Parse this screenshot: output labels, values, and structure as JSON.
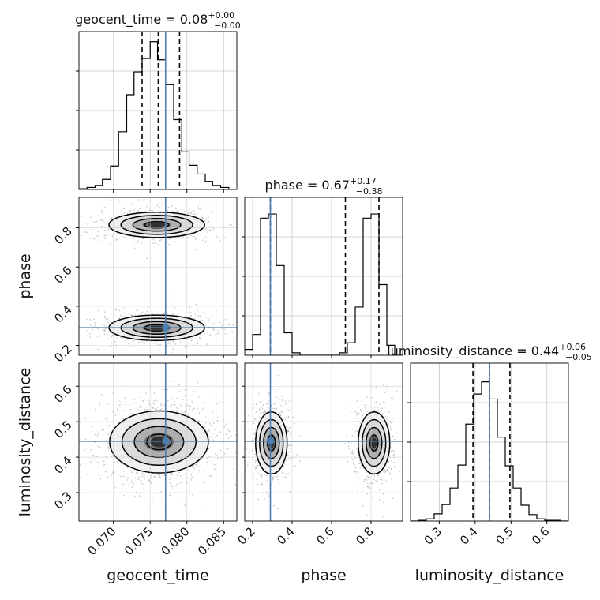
{
  "chart_data": {
    "type": "corner",
    "parameters": [
      "geocent_time",
      "phase",
      "luminosity_distance"
    ],
    "diagonal": [
      {
        "parameter": "geocent_time",
        "title_name": "geocent_time",
        "title_value": "0.08",
        "title_plus": "+0.00",
        "title_minus": "−0.00",
        "xlim": [
          0.0653,
          0.0868
        ],
        "xticks": [
          0.07,
          0.075,
          0.08,
          0.085
        ],
        "xtick_labels": [
          "0.070",
          "0.075",
          "0.080",
          "0.085"
        ],
        "bin_edges": [
          0.0653,
          0.0664,
          0.0675,
          0.0685,
          0.0696,
          0.0707,
          0.0718,
          0.0728,
          0.0739,
          0.075,
          0.076,
          0.0771,
          0.0782,
          0.0793,
          0.0803,
          0.0814,
          0.0825,
          0.0835,
          0.0846,
          0.0857,
          0.0868
        ],
        "counts": [
          1,
          3,
          6,
          15,
          35,
          86,
          141,
          175,
          195,
          220,
          193,
          156,
          104,
          56,
          36,
          23,
          12,
          6,
          3,
          0
        ],
        "ymax": 235,
        "quantiles": [
          0.0739,
          0.0761,
          0.079
        ],
        "truth": 0.0771
      },
      {
        "parameter": "phase",
        "title_name": "phase",
        "title_value": "0.67",
        "title_plus": "+0.17",
        "title_minus": "−0.38",
        "xlim": [
          0.16,
          0.96
        ],
        "xticks": [
          0.2,
          0.4,
          0.6,
          0.8
        ],
        "xtick_labels": [
          "0.2",
          "0.4",
          "0.6",
          "0.8"
        ],
        "bin_edges": [
          0.16,
          0.2,
          0.24,
          0.28,
          0.32,
          0.36,
          0.4,
          0.44,
          0.48,
          0.52,
          0.56,
          0.6,
          0.64,
          0.68,
          0.72,
          0.76,
          0.8,
          0.84,
          0.88,
          0.92,
          0.96
        ],
        "counts": [
          7,
          25,
          165,
          170,
          108,
          27,
          3,
          0,
          0,
          0,
          0,
          0,
          3,
          15,
          58,
          165,
          170,
          85,
          12,
          0
        ],
        "ymax": 190,
        "quantiles": [
          0.29,
          0.67,
          0.84
        ],
        "truth": 0.29
      },
      {
        "parameter": "luminosity_distance",
        "title_name": "luminosity_distance",
        "title_value": "0.44",
        "title_plus": "+0.06",
        "title_minus": "−0.05",
        "xlim": [
          0.22,
          0.66
        ],
        "xticks": [
          0.3,
          0.4,
          0.5,
          0.6
        ],
        "xtick_labels": [
          "0.3",
          "0.4",
          "0.5",
          "0.6"
        ],
        "bin_edges": [
          0.22,
          0.242,
          0.264,
          0.286,
          0.308,
          0.33,
          0.352,
          0.374,
          0.396,
          0.418,
          0.44,
          0.462,
          0.484,
          0.506,
          0.528,
          0.55,
          0.572,
          0.594,
          0.616,
          0.638,
          0.66
        ],
        "counts": [
          0,
          1,
          3,
          10,
          23,
          46,
          78,
          135,
          177,
          194,
          170,
          117,
          77,
          46,
          22,
          9,
          3,
          1,
          1,
          0
        ],
        "ymax": 220,
        "quantiles": [
          0.394,
          0.44,
          0.497
        ],
        "truth": 0.44
      }
    ],
    "pairs": [
      {
        "x": "geocent_time",
        "y": "phase",
        "ylim": [
          0.15,
          0.955
        ],
        "yticks": [
          0.2,
          0.4,
          0.6,
          0.8
        ],
        "ytick_labels": [
          "0.2",
          "0.4",
          "0.6",
          "0.8"
        ],
        "modes": [
          {
            "cx": 0.0759,
            "cy": 0.815,
            "sx": 0.0031,
            "sy": 0.034,
            "weight": 0.5
          },
          {
            "cx": 0.0759,
            "cy": 0.29,
            "sx": 0.0031,
            "sy": 0.034,
            "weight": 0.5
          }
        ],
        "truth": [
          0.0771,
          0.29
        ]
      },
      {
        "x": "geocent_time",
        "y": "luminosity_distance",
        "ylim": [
          0.22,
          0.665
        ],
        "yticks": [
          0.3,
          0.4,
          0.5,
          0.6
        ],
        "ytick_labels": [
          "0.3",
          "0.4",
          "0.5",
          "0.6"
        ],
        "modes": [
          {
            "cx": 0.0762,
            "cy": 0.443,
            "sx": 0.0032,
            "sy": 0.046,
            "weight": 1.0
          }
        ],
        "truth": [
          0.0771,
          0.445
        ]
      },
      {
        "x": "phase",
        "y": "luminosity_distance",
        "ylim": [
          0.22,
          0.665
        ],
        "yticks": [
          0.3,
          0.4,
          0.5,
          0.6
        ],
        "ytick_labels": [
          "0.3",
          "0.4",
          "0.5",
          "0.6"
        ],
        "modes": [
          {
            "cx": 0.295,
            "cy": 0.44,
            "sx": 0.038,
            "sy": 0.046,
            "weight": 0.5
          },
          {
            "cx": 0.815,
            "cy": 0.44,
            "sx": 0.038,
            "sy": 0.046,
            "weight": 0.5
          }
        ],
        "truth": [
          0.29,
          0.445
        ]
      }
    ],
    "axis_labels": {
      "x": [
        "geocent_time",
        "phase",
        "luminosity_distance"
      ],
      "y": [
        "phase",
        "luminosity_distance"
      ]
    },
    "contour_levels_sigma": [
      0.5,
      1.0,
      1.5,
      2.0
    ],
    "grid": true,
    "colors": {
      "truth": "#4a7fb0",
      "hist": "#000000",
      "grid": "#c8c8c8",
      "points": "#8c8c8c"
    }
  }
}
